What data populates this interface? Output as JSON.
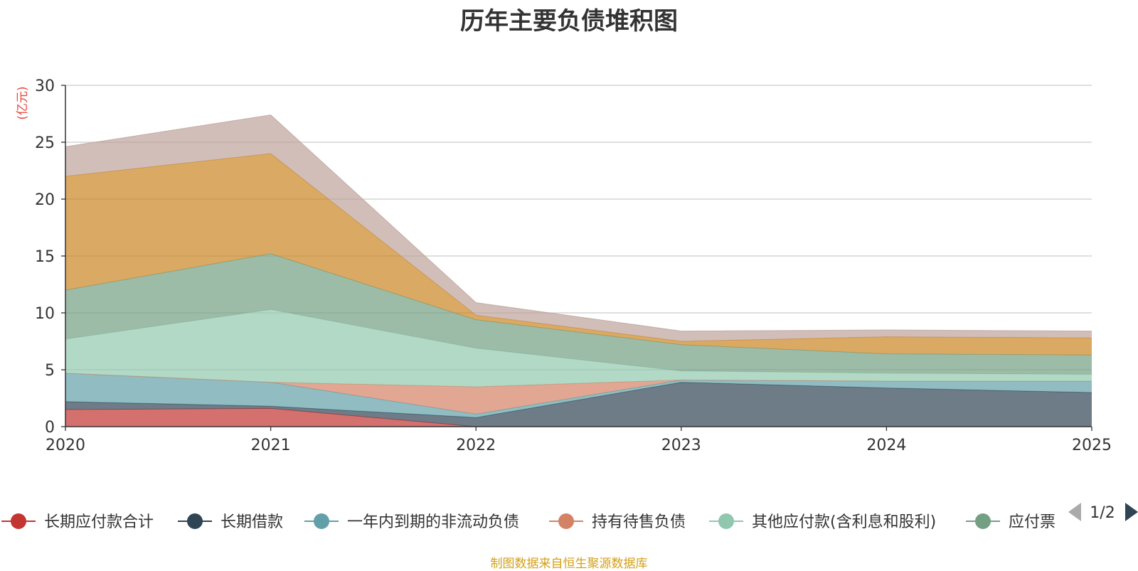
{
  "chart_data": {
    "type": "area",
    "title": "历年主要负债堆积图",
    "unit_label": "(亿元)",
    "x": [
      "2020",
      "2021",
      "2022",
      "2023",
      "2024",
      "2025"
    ],
    "ylim": [
      0,
      30
    ],
    "yticks": [
      0,
      5,
      10,
      15,
      20,
      25,
      30
    ],
    "grid": true,
    "stacked": true,
    "series": [
      {
        "name": "长期应付款合计",
        "color": "#c23531",
        "values": [
          1.5,
          1.6,
          0,
          0,
          0,
          0
        ]
      },
      {
        "name": "长期借款",
        "color": "#2f4554",
        "values": [
          0.7,
          0.2,
          0.8,
          3.9,
          3.4,
          3.0
        ]
      },
      {
        "name": "一年内到期的非流动负债",
        "color": "#61a0a8",
        "values": [
          2.5,
          2.1,
          0.3,
          0.2,
          0.6,
          1.0
        ]
      },
      {
        "name": "持有待售负债",
        "color": "#d48265",
        "values": [
          0,
          0,
          2.4,
          0,
          0,
          0
        ]
      },
      {
        "name": "其他应付款(含利息和股利)",
        "color": "#91c7ae",
        "values": [
          3.0,
          6.4,
          3.4,
          0.8,
          0.7,
          0.6
        ]
      },
      {
        "name": "应付票据",
        "color": "#749f83",
        "values": [
          4.3,
          4.9,
          2.5,
          2.3,
          1.7,
          1.7
        ]
      },
      {
        "name": "",
        "color": "#ca8622",
        "values": [
          10.0,
          8.8,
          0.4,
          0.3,
          1.5,
          1.5
        ]
      },
      {
        "name": "",
        "color": "#bda29a",
        "values": [
          2.6,
          3.4,
          1.1,
          0.9,
          0.6,
          0.6
        ]
      }
    ]
  },
  "legend": {
    "visible_items": [
      {
        "label": "长期应付款合计",
        "color": "#c23531"
      },
      {
        "label": "长期借款",
        "color": "#2f4554"
      },
      {
        "label": "一年内到期的非流动负债",
        "color": "#61a0a8"
      },
      {
        "label": "持有待售负债",
        "color": "#d48265"
      },
      {
        "label": "其他应付款(含利息和股利)",
        "color": "#91c7ae"
      },
      {
        "label": "应付票",
        "color": "#749f83"
      }
    ],
    "page_indicator": "1/2"
  },
  "source_note": "制图数据来自恒生聚源数据库"
}
